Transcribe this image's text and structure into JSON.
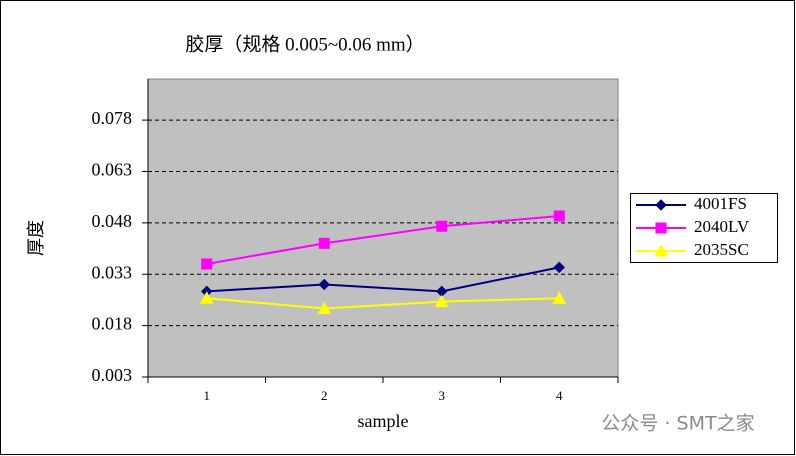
{
  "chart_data": {
    "type": "line",
    "title": "胶厚（规格 0.005~0.06 mm）",
    "x_label": "sample",
    "y_label": "厚度",
    "categories": [
      "1",
      "2",
      "3",
      "4"
    ],
    "series": [
      {
        "name": "4001FS",
        "color": "#000080",
        "marker": "diamond",
        "values": [
          0.028,
          0.03,
          0.028,
          0.035
        ]
      },
      {
        "name": "2040LV",
        "color": "#ff00ff",
        "marker": "square",
        "values": [
          0.036,
          0.042,
          0.047,
          0.05
        ]
      },
      {
        "name": "2035SC",
        "color": "#ffff00",
        "marker": "triangle",
        "values": [
          0.026,
          0.023,
          0.025,
          0.026
        ]
      }
    ],
    "ylim": [
      0.003,
      0.09
    ],
    "yticks": [
      0.003,
      0.018,
      0.033,
      0.048,
      0.063,
      0.078
    ],
    "grid": true,
    "legend": "right",
    "plot_background": "#c0c0c0",
    "watermark": "公众号 · SMT之家"
  }
}
